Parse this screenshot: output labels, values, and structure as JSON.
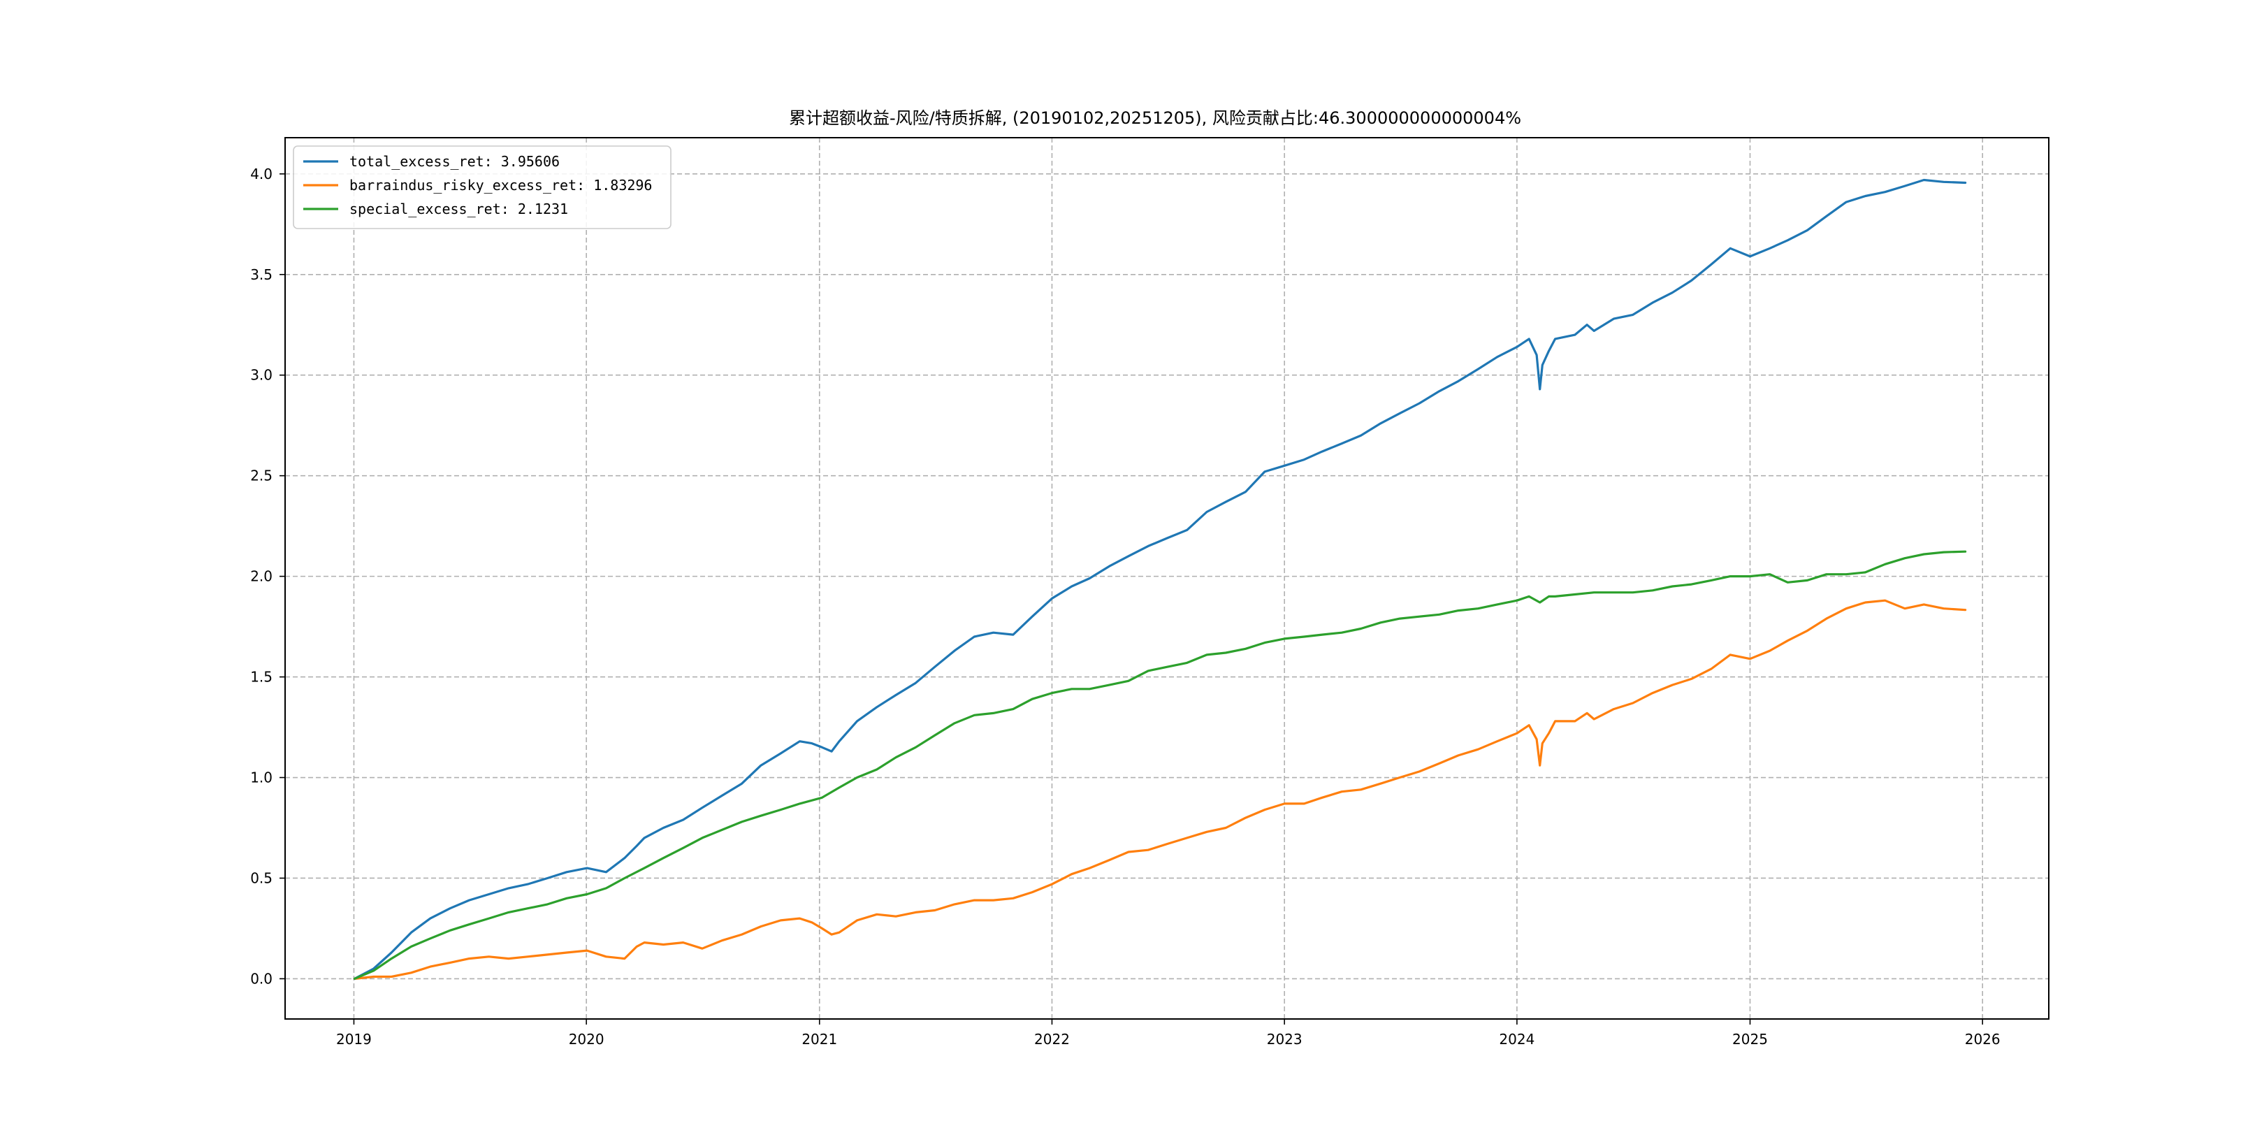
{
  "chart_data": {
    "type": "line",
    "title": "累计超额收益-风险/特质拆解, (20190102,20251205), 风险贡献占比:46.300000000000004%",
    "xlabel": "",
    "ylabel": "",
    "x_range": [
      "2018-09-15",
      "2026-04-15"
    ],
    "x_ticks": [
      "2019",
      "2020",
      "2021",
      "2022",
      "2023",
      "2024",
      "2025",
      "2026"
    ],
    "ylim": [
      -0.2,
      4.18
    ],
    "y_ticks": [
      "0.0",
      "0.5",
      "1.0",
      "1.5",
      "2.0",
      "2.5",
      "3.0",
      "3.5",
      "4.0"
    ],
    "grid": true,
    "grid_style": "dashed",
    "legend_position": "upper-left",
    "series": [
      {
        "name": "total_excess_ret",
        "legend_label": "total_excess_ret: 3.95606",
        "color": "#1f77b4",
        "points": [
          [
            "2019-01-02",
            0.0
          ],
          [
            "2019-02-01",
            0.05
          ],
          [
            "2019-03-01",
            0.13
          ],
          [
            "2019-04-01",
            0.23
          ],
          [
            "2019-05-01",
            0.3
          ],
          [
            "2019-06-01",
            0.35
          ],
          [
            "2019-07-01",
            0.39
          ],
          [
            "2019-08-01",
            0.42
          ],
          [
            "2019-09-01",
            0.45
          ],
          [
            "2019-10-01",
            0.47
          ],
          [
            "2019-11-01",
            0.5
          ],
          [
            "2019-12-01",
            0.53
          ],
          [
            "2020-01-02",
            0.55
          ],
          [
            "2020-02-01",
            0.53
          ],
          [
            "2020-03-01",
            0.6
          ],
          [
            "2020-03-20",
            0.66
          ],
          [
            "2020-04-01",
            0.7
          ],
          [
            "2020-05-01",
            0.75
          ],
          [
            "2020-06-01",
            0.79
          ],
          [
            "2020-07-01",
            0.85
          ],
          [
            "2020-08-01",
            0.91
          ],
          [
            "2020-09-01",
            0.97
          ],
          [
            "2020-10-01",
            1.06
          ],
          [
            "2020-11-01",
            1.12
          ],
          [
            "2020-12-01",
            1.18
          ],
          [
            "2020-12-20",
            1.17
          ],
          [
            "2021-01-05",
            1.15
          ],
          [
            "2021-01-20",
            1.13
          ],
          [
            "2021-02-01",
            1.18
          ],
          [
            "2021-03-01",
            1.28
          ],
          [
            "2021-04-01",
            1.35
          ],
          [
            "2021-05-01",
            1.41
          ],
          [
            "2021-06-01",
            1.47
          ],
          [
            "2021-07-01",
            1.55
          ],
          [
            "2021-08-01",
            1.63
          ],
          [
            "2021-09-01",
            1.7
          ],
          [
            "2021-10-01",
            1.72
          ],
          [
            "2021-11-01",
            1.71
          ],
          [
            "2021-12-01",
            1.8
          ],
          [
            "2022-01-01",
            1.89
          ],
          [
            "2022-02-01",
            1.95
          ],
          [
            "2022-03-01",
            1.99
          ],
          [
            "2022-04-01",
            2.05
          ],
          [
            "2022-05-01",
            2.1
          ],
          [
            "2022-06-01",
            2.15
          ],
          [
            "2022-07-01",
            2.19
          ],
          [
            "2022-08-01",
            2.23
          ],
          [
            "2022-09-01",
            2.32
          ],
          [
            "2022-10-01",
            2.37
          ],
          [
            "2022-11-01",
            2.42
          ],
          [
            "2022-12-01",
            2.52
          ],
          [
            "2023-01-01",
            2.55
          ],
          [
            "2023-02-01",
            2.58
          ],
          [
            "2023-03-01",
            2.62
          ],
          [
            "2023-04-01",
            2.66
          ],
          [
            "2023-05-01",
            2.7
          ],
          [
            "2023-06-01",
            2.76
          ],
          [
            "2023-07-01",
            2.81
          ],
          [
            "2023-08-01",
            2.86
          ],
          [
            "2023-09-01",
            2.92
          ],
          [
            "2023-10-01",
            2.97
          ],
          [
            "2023-11-01",
            3.03
          ],
          [
            "2023-12-01",
            3.09
          ],
          [
            "2024-01-01",
            3.14
          ],
          [
            "2024-01-20",
            3.18
          ],
          [
            "2024-02-01",
            3.1
          ],
          [
            "2024-02-06",
            2.93
          ],
          [
            "2024-02-10",
            3.05
          ],
          [
            "2024-02-20",
            3.12
          ],
          [
            "2024-03-01",
            3.18
          ],
          [
            "2024-04-01",
            3.2
          ],
          [
            "2024-04-20",
            3.25
          ],
          [
            "2024-05-01",
            3.22
          ],
          [
            "2024-06-01",
            3.28
          ],
          [
            "2024-07-01",
            3.3
          ],
          [
            "2024-08-01",
            3.36
          ],
          [
            "2024-09-01",
            3.41
          ],
          [
            "2024-10-01",
            3.47
          ],
          [
            "2024-11-01",
            3.55
          ],
          [
            "2024-12-01",
            3.63
          ],
          [
            "2025-01-01",
            3.59
          ],
          [
            "2025-02-01",
            3.63
          ],
          [
            "2025-03-01",
            3.67
          ],
          [
            "2025-04-01",
            3.72
          ],
          [
            "2025-05-01",
            3.79
          ],
          [
            "2025-06-01",
            3.86
          ],
          [
            "2025-07-01",
            3.89
          ],
          [
            "2025-08-01",
            3.91
          ],
          [
            "2025-09-01",
            3.94
          ],
          [
            "2025-10-01",
            3.97
          ],
          [
            "2025-11-01",
            3.96
          ],
          [
            "2025-12-05",
            3.956
          ]
        ]
      },
      {
        "name": "barraindus_risky_excess_ret",
        "legend_label": "barraindus_risky_excess_ret: 1.83296",
        "color": "#ff7f0e",
        "points": [
          [
            "2019-01-02",
            0.0
          ],
          [
            "2019-02-01",
            0.01
          ],
          [
            "2019-03-01",
            0.01
          ],
          [
            "2019-04-01",
            0.03
          ],
          [
            "2019-05-01",
            0.06
          ],
          [
            "2019-06-01",
            0.08
          ],
          [
            "2019-07-01",
            0.1
          ],
          [
            "2019-08-01",
            0.11
          ],
          [
            "2019-09-01",
            0.1
          ],
          [
            "2019-10-01",
            0.11
          ],
          [
            "2019-11-01",
            0.12
          ],
          [
            "2019-12-01",
            0.13
          ],
          [
            "2020-01-02",
            0.14
          ],
          [
            "2020-02-01",
            0.11
          ],
          [
            "2020-03-01",
            0.1
          ],
          [
            "2020-03-20",
            0.16
          ],
          [
            "2020-04-01",
            0.18
          ],
          [
            "2020-05-01",
            0.17
          ],
          [
            "2020-06-01",
            0.18
          ],
          [
            "2020-07-01",
            0.15
          ],
          [
            "2020-08-01",
            0.19
          ],
          [
            "2020-09-01",
            0.22
          ],
          [
            "2020-10-01",
            0.26
          ],
          [
            "2020-11-01",
            0.29
          ],
          [
            "2020-12-01",
            0.3
          ],
          [
            "2020-12-20",
            0.28
          ],
          [
            "2021-01-05",
            0.25
          ],
          [
            "2021-01-20",
            0.22
          ],
          [
            "2021-02-01",
            0.23
          ],
          [
            "2021-03-01",
            0.29
          ],
          [
            "2021-04-01",
            0.32
          ],
          [
            "2021-05-01",
            0.31
          ],
          [
            "2021-06-01",
            0.33
          ],
          [
            "2021-07-01",
            0.34
          ],
          [
            "2021-08-01",
            0.37
          ],
          [
            "2021-09-01",
            0.39
          ],
          [
            "2021-10-01",
            0.39
          ],
          [
            "2021-11-01",
            0.4
          ],
          [
            "2021-12-01",
            0.43
          ],
          [
            "2022-01-01",
            0.47
          ],
          [
            "2022-02-01",
            0.52
          ],
          [
            "2022-03-01",
            0.55
          ],
          [
            "2022-04-01",
            0.59
          ],
          [
            "2022-05-01",
            0.63
          ],
          [
            "2022-06-01",
            0.64
          ],
          [
            "2022-07-01",
            0.67
          ],
          [
            "2022-08-01",
            0.7
          ],
          [
            "2022-09-01",
            0.73
          ],
          [
            "2022-10-01",
            0.75
          ],
          [
            "2022-11-01",
            0.8
          ],
          [
            "2022-12-01",
            0.84
          ],
          [
            "2023-01-01",
            0.87
          ],
          [
            "2023-02-01",
            0.87
          ],
          [
            "2023-03-01",
            0.9
          ],
          [
            "2023-04-01",
            0.93
          ],
          [
            "2023-05-01",
            0.94
          ],
          [
            "2023-06-01",
            0.97
          ],
          [
            "2023-07-01",
            1.0
          ],
          [
            "2023-08-01",
            1.03
          ],
          [
            "2023-09-01",
            1.07
          ],
          [
            "2023-10-01",
            1.11
          ],
          [
            "2023-11-01",
            1.14
          ],
          [
            "2023-12-01",
            1.18
          ],
          [
            "2024-01-01",
            1.22
          ],
          [
            "2024-01-20",
            1.26
          ],
          [
            "2024-02-01",
            1.19
          ],
          [
            "2024-02-06",
            1.06
          ],
          [
            "2024-02-10",
            1.17
          ],
          [
            "2024-02-20",
            1.22
          ],
          [
            "2024-03-01",
            1.28
          ],
          [
            "2024-04-01",
            1.28
          ],
          [
            "2024-04-20",
            1.32
          ],
          [
            "2024-05-01",
            1.29
          ],
          [
            "2024-06-01",
            1.34
          ],
          [
            "2024-07-01",
            1.37
          ],
          [
            "2024-08-01",
            1.42
          ],
          [
            "2024-09-01",
            1.46
          ],
          [
            "2024-10-01",
            1.49
          ],
          [
            "2024-11-01",
            1.54
          ],
          [
            "2024-12-01",
            1.61
          ],
          [
            "2025-01-01",
            1.59
          ],
          [
            "2025-02-01",
            1.63
          ],
          [
            "2025-03-01",
            1.68
          ],
          [
            "2025-04-01",
            1.73
          ],
          [
            "2025-05-01",
            1.79
          ],
          [
            "2025-06-01",
            1.84
          ],
          [
            "2025-07-01",
            1.87
          ],
          [
            "2025-08-01",
            1.88
          ],
          [
            "2025-09-01",
            1.84
          ],
          [
            "2025-10-01",
            1.86
          ],
          [
            "2025-11-01",
            1.84
          ],
          [
            "2025-12-05",
            1.833
          ]
        ]
      },
      {
        "name": "special_excess_ret",
        "legend_label": "special_excess_ret: 2.1231",
        "color": "#2ca02c",
        "points": [
          [
            "2019-01-02",
            0.0
          ],
          [
            "2019-02-01",
            0.04
          ],
          [
            "2019-03-01",
            0.1
          ],
          [
            "2019-04-01",
            0.16
          ],
          [
            "2019-05-01",
            0.2
          ],
          [
            "2019-06-01",
            0.24
          ],
          [
            "2019-07-01",
            0.27
          ],
          [
            "2019-08-01",
            0.3
          ],
          [
            "2019-09-01",
            0.33
          ],
          [
            "2019-10-01",
            0.35
          ],
          [
            "2019-11-01",
            0.37
          ],
          [
            "2019-12-01",
            0.4
          ],
          [
            "2020-01-02",
            0.42
          ],
          [
            "2020-02-01",
            0.45
          ],
          [
            "2020-03-01",
            0.5
          ],
          [
            "2020-04-01",
            0.55
          ],
          [
            "2020-05-01",
            0.6
          ],
          [
            "2020-06-01",
            0.65
          ],
          [
            "2020-07-01",
            0.7
          ],
          [
            "2020-08-01",
            0.74
          ],
          [
            "2020-09-01",
            0.78
          ],
          [
            "2020-10-01",
            0.81
          ],
          [
            "2020-11-01",
            0.84
          ],
          [
            "2020-12-01",
            0.87
          ],
          [
            "2021-01-05",
            0.9
          ],
          [
            "2021-02-01",
            0.95
          ],
          [
            "2021-03-01",
            1.0
          ],
          [
            "2021-04-01",
            1.04
          ],
          [
            "2021-05-01",
            1.1
          ],
          [
            "2021-06-01",
            1.15
          ],
          [
            "2021-07-01",
            1.21
          ],
          [
            "2021-08-01",
            1.27
          ],
          [
            "2021-09-01",
            1.31
          ],
          [
            "2021-10-01",
            1.32
          ],
          [
            "2021-11-01",
            1.34
          ],
          [
            "2021-12-01",
            1.39
          ],
          [
            "2022-01-01",
            1.42
          ],
          [
            "2022-02-01",
            1.44
          ],
          [
            "2022-03-01",
            1.44
          ],
          [
            "2022-04-01",
            1.46
          ],
          [
            "2022-05-01",
            1.48
          ],
          [
            "2022-06-01",
            1.53
          ],
          [
            "2022-07-01",
            1.55
          ],
          [
            "2022-08-01",
            1.57
          ],
          [
            "2022-09-01",
            1.61
          ],
          [
            "2022-10-01",
            1.62
          ],
          [
            "2022-11-01",
            1.64
          ],
          [
            "2022-12-01",
            1.67
          ],
          [
            "2023-01-01",
            1.69
          ],
          [
            "2023-02-01",
            1.7
          ],
          [
            "2023-03-01",
            1.71
          ],
          [
            "2023-04-01",
            1.72
          ],
          [
            "2023-05-01",
            1.74
          ],
          [
            "2023-06-01",
            1.77
          ],
          [
            "2023-07-01",
            1.79
          ],
          [
            "2023-08-01",
            1.8
          ],
          [
            "2023-09-01",
            1.81
          ],
          [
            "2023-10-01",
            1.83
          ],
          [
            "2023-11-01",
            1.84
          ],
          [
            "2023-12-01",
            1.86
          ],
          [
            "2024-01-01",
            1.88
          ],
          [
            "2024-01-20",
            1.9
          ],
          [
            "2024-02-06",
            1.87
          ],
          [
            "2024-02-20",
            1.9
          ],
          [
            "2024-03-01",
            1.9
          ],
          [
            "2024-04-01",
            1.91
          ],
          [
            "2024-05-01",
            1.92
          ],
          [
            "2024-06-01",
            1.92
          ],
          [
            "2024-07-01",
            1.92
          ],
          [
            "2024-08-01",
            1.93
          ],
          [
            "2024-09-01",
            1.95
          ],
          [
            "2024-10-01",
            1.96
          ],
          [
            "2024-11-01",
            1.98
          ],
          [
            "2024-12-01",
            2.0
          ],
          [
            "2025-01-01",
            2.0
          ],
          [
            "2025-02-01",
            2.01
          ],
          [
            "2025-03-01",
            1.97
          ],
          [
            "2025-04-01",
            1.98
          ],
          [
            "2025-05-01",
            2.01
          ],
          [
            "2025-06-01",
            2.01
          ],
          [
            "2025-07-01",
            2.02
          ],
          [
            "2025-08-01",
            2.06
          ],
          [
            "2025-09-01",
            2.09
          ],
          [
            "2025-10-01",
            2.11
          ],
          [
            "2025-11-01",
            2.12
          ],
          [
            "2025-12-05",
            2.123
          ]
        ]
      }
    ]
  }
}
